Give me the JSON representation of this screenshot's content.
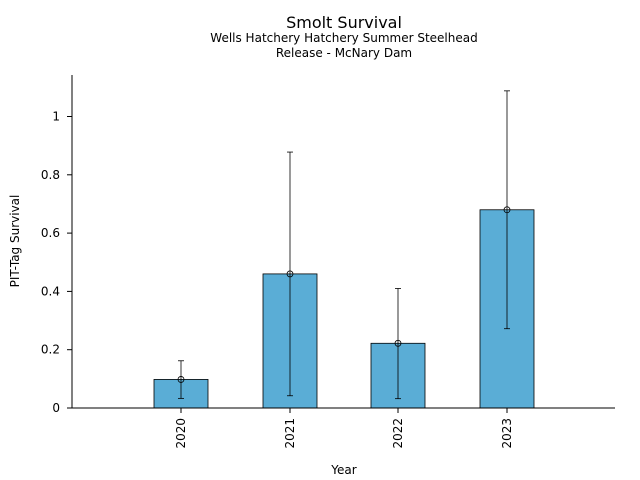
{
  "chart_data": {
    "type": "bar",
    "title": "Smolt Survival",
    "subtitle_lines": [
      "Wells Hatchery Hatchery Summer Steelhead",
      "Release - McNary Dam"
    ],
    "xlabel": "Year",
    "ylabel": "PIT-Tag Survival",
    "categories": [
      "2020",
      "2021",
      "2022",
      "2023"
    ],
    "values": [
      0.098,
      0.46,
      0.222,
      0.68
    ],
    "error_low": [
      0.033,
      0.042,
      0.032,
      0.272
    ],
    "error_high": [
      0.162,
      0.878,
      0.41,
      1.088
    ],
    "ylim": [
      0,
      1.14
    ],
    "yticks": [
      0,
      0.2,
      0.4,
      0.6,
      0.8,
      1
    ],
    "ytick_labels": [
      "0",
      "0.2",
      "0.4",
      "0.6",
      "0.8",
      "1"
    ],
    "bar_color": "#5aadd6",
    "grid": false
  }
}
